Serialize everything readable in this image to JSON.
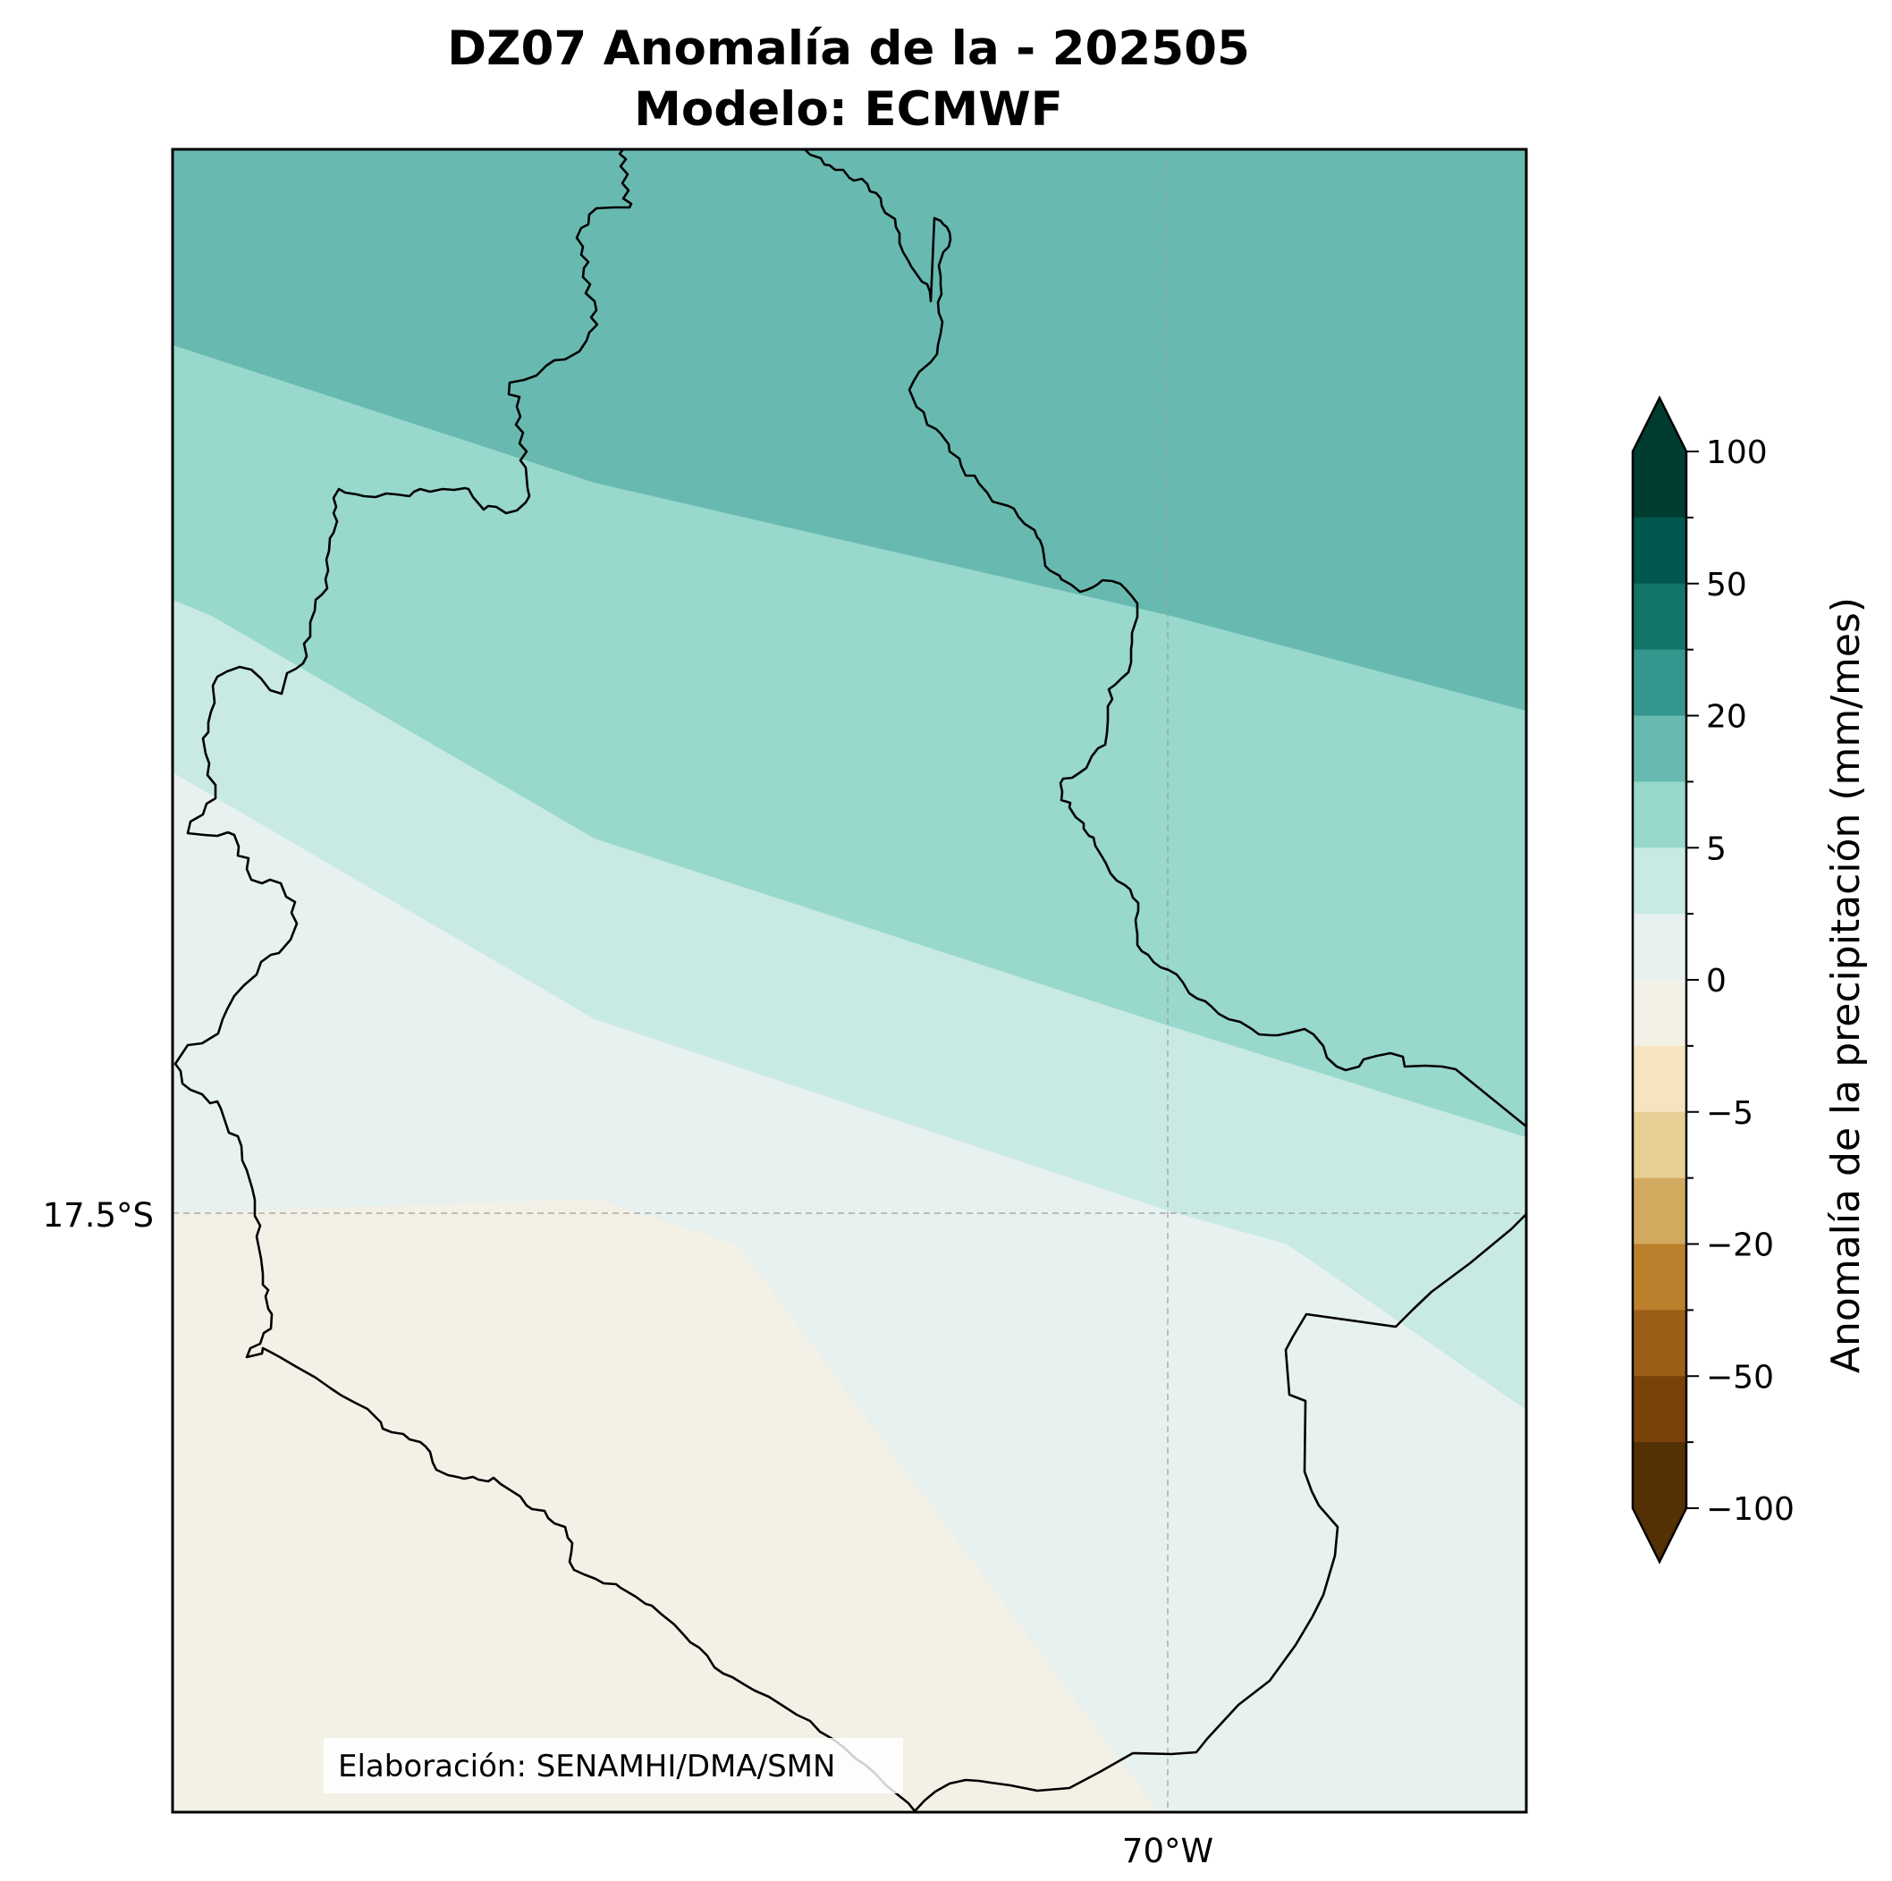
{
  "title": {
    "line1": "DZ07 Anomalía de la - 202505",
    "line2": "Modelo: ECMWF"
  },
  "map": {
    "lat_label": "17.5°S",
    "lon_label": "70°W",
    "credit": "Elaboración: SENAMHI/DMA/SMN",
    "gridlines": true
  },
  "colorbar": {
    "label": "Anomalía de la precipitación (mm/mes)",
    "extend": "both",
    "orientation": "vertical",
    "placement": "right",
    "tick_labels": [
      "100",
      "50",
      "20",
      "5",
      "0",
      "−5",
      "−20",
      "−50",
      "−100"
    ],
    "bins_top_to_bottom": [
      "#003c30",
      "#01584f",
      "#137468",
      "#35968d",
      "#68bab0",
      "#98d8cd",
      "#c8eae3",
      "#e7f1ef",
      "#f3f0e6",
      "#f5e4bf",
      "#e6cf95",
      "#d2aa5f",
      "#bc7f2c",
      "#9c5e17",
      "#794209",
      "#543005"
    ],
    "max_arrow_color": "#003c30",
    "min_arrow_color": "#543005"
  },
  "fill_colors": {
    "anomaly_10_to_20": "#68bab0",
    "anomaly_5_to_10": "#98d8cd",
    "anomaly_2_to_5": "#c8eae3",
    "anomaly_0_to_2": "#e7f1ef",
    "anomaly_-2_to_0": "#f3f0e6"
  }
}
